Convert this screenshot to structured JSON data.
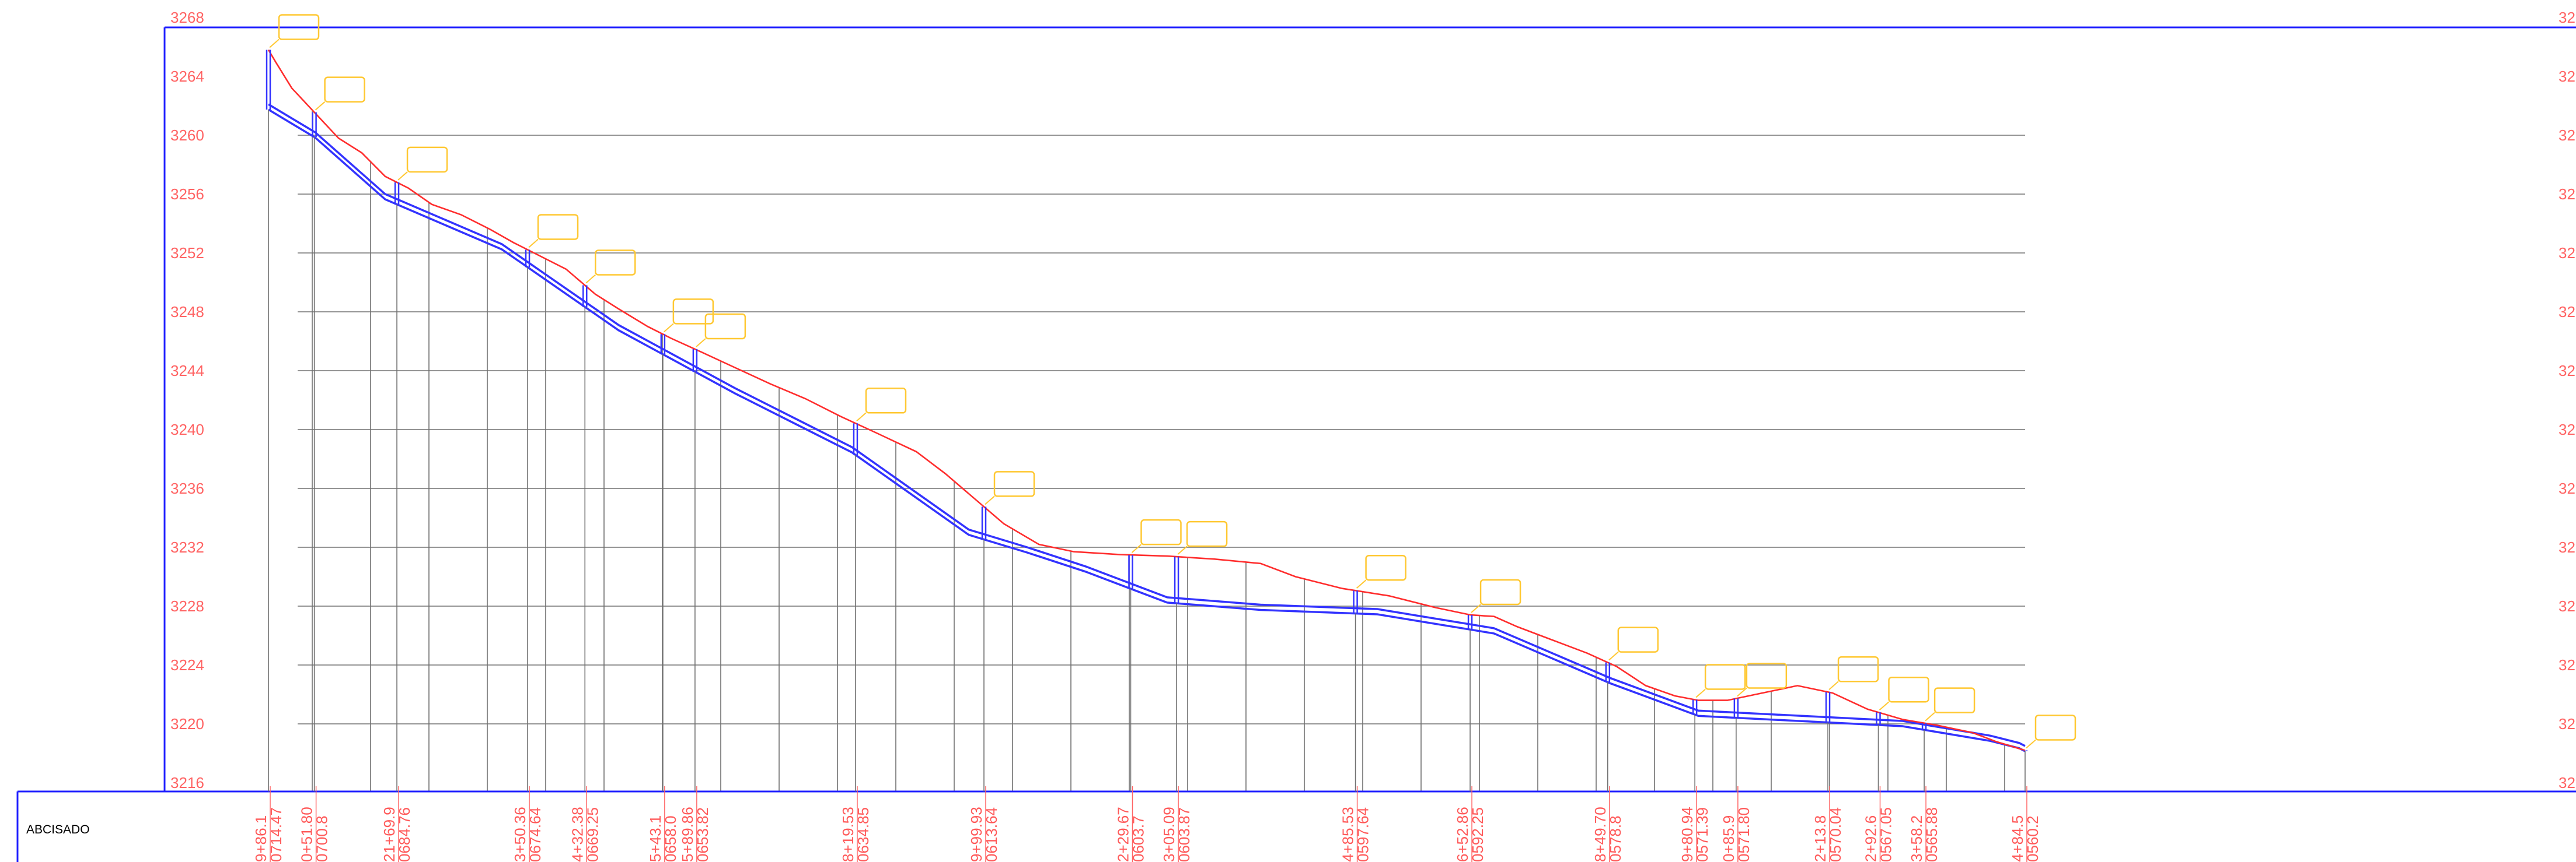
{
  "profile": {
    "elevation_labels": [
      "3268",
      "3264",
      "3260",
      "3256",
      "3252",
      "3248",
      "3244",
      "3240",
      "3236",
      "3232",
      "3228",
      "3224",
      "3220",
      "3216"
    ],
    "right_elevation_labels": [
      "32",
      "32",
      "32",
      "32",
      "32",
      "32",
      "32",
      "32",
      "32",
      "32",
      "32",
      "32",
      "32",
      "32"
    ],
    "row_label": "ABCISADO"
  },
  "chart_data": {
    "type": "line",
    "title": "",
    "xlabel": "",
    "ylabel": "",
    "ylim": [
      3216,
      3268
    ],
    "series": [
      {
        "values": [
          [
            0,
            3265.8
          ],
          [
            12,
            3265
          ],
          [
            40,
            3263.2
          ],
          [
            80,
            3261.5
          ],
          [
            120,
            3259.8
          ],
          [
            160,
            3258.8
          ],
          [
            200,
            3257.2
          ],
          [
            240,
            3256.4
          ],
          [
            280,
            3255.3
          ],
          [
            330,
            3254.6
          ],
          [
            380,
            3253.6
          ],
          [
            420,
            3252.7
          ],
          [
            460,
            3251.9
          ],
          [
            510,
            3250.9
          ],
          [
            560,
            3249.2
          ],
          [
            600,
            3248.2
          ],
          [
            650,
            3247
          ],
          [
            690,
            3246.2
          ],
          [
            740,
            3245.3
          ],
          [
            800,
            3244.2
          ],
          [
            860,
            3243.1
          ],
          [
            920,
            3242.1
          ],
          [
            980,
            3240.9
          ],
          [
            1040,
            3239.8
          ],
          [
            1110,
            3238.5
          ],
          [
            1160,
            3237
          ],
          [
            1210,
            3235.3
          ],
          [
            1260,
            3233.6
          ],
          [
            1320,
            3232.2
          ],
          [
            1380,
            3231.7
          ],
          [
            1460,
            3231.5
          ],
          [
            1540,
            3231.4
          ],
          [
            1620,
            3231.2
          ],
          [
            1700,
            3230.9
          ],
          [
            1760,
            3230
          ],
          [
            1840,
            3229.2
          ],
          [
            1920,
            3228.7
          ],
          [
            2000,
            3227.9
          ],
          [
            2060,
            3227.4
          ],
          [
            2100,
            3227.3
          ],
          [
            2140,
            3226.6
          ],
          [
            2200,
            3225.7
          ],
          [
            2260,
            3224.8
          ],
          [
            2310,
            3223.9
          ],
          [
            2360,
            3222.6
          ],
          [
            2410,
            3221.9
          ],
          [
            2450,
            3221.6
          ],
          [
            2500,
            3221.6
          ],
          [
            2560,
            3222.1
          ],
          [
            2620,
            3222.6
          ],
          [
            2680,
            3222.1
          ],
          [
            2740,
            3221
          ],
          [
            2800,
            3220.3
          ],
          [
            2860,
            3219.9
          ],
          [
            2920,
            3219.4
          ],
          [
            2960,
            3218.8
          ],
          [
            3010,
            3218.2
          ]
        ]
      },
      {
        "values": [
          [
            0,
            3262.1
          ],
          [
            80,
            3260.2
          ],
          [
            200,
            3256
          ],
          [
            400,
            3252.6
          ],
          [
            600,
            3247.1
          ],
          [
            800,
            3242.8
          ],
          [
            1000,
            3238.8
          ],
          [
            1200,
            3233.2
          ],
          [
            1300,
            3232
          ],
          [
            1400,
            3230.7
          ],
          [
            1540,
            3228.6
          ],
          [
            1700,
            3228.1
          ],
          [
            1900,
            3227.8
          ],
          [
            2100,
            3226.5
          ],
          [
            2300,
            3223.1
          ],
          [
            2450,
            3220.9
          ],
          [
            2600,
            3220.6
          ],
          [
            2800,
            3220.2
          ],
          [
            2950,
            3219.2
          ],
          [
            3000,
            3218.7
          ],
          [
            3010,
            3218.5
          ]
        ]
      }
    ],
    "stations": [
      [
        "9+86.1",
        "0714.47"
      ],
      [
        "0+51.80",
        "0700.8"
      ],
      [
        "21+69.9",
        "0684.76"
      ],
      [
        "3+50.36",
        "0674.64"
      ],
      [
        "4+32.38",
        "0669.25"
      ],
      [
        "5+43.1",
        "0658.0"
      ],
      [
        "5+89.86",
        "0653.82"
      ],
      [
        "8+19.53",
        "0634.85"
      ],
      [
        "9+99.93",
        "0613.64"
      ],
      [
        "2+29.67",
        "0603.7"
      ],
      [
        "3+05.09",
        "0603.87"
      ],
      [
        "4+85.53",
        "0597.64"
      ],
      [
        "6+52.86",
        "0592.25"
      ],
      [
        "8+49.70",
        "0578.8"
      ],
      [
        "9+80.94",
        "0571.39"
      ],
      [
        "0+85.9",
        "0571.80"
      ],
      [
        "2+13.8",
        "0570.04"
      ],
      [
        "2+92.6",
        "0567.05"
      ],
      [
        "3+58.2",
        "0565.88"
      ],
      [
        "4+84.5",
        "0560.2"
      ]
    ],
    "colors": {
      "border": "#1f1fff",
      "terrain_line": "#ff2d2d",
      "pipe_line": "#3333ff",
      "grid": "#707070",
      "label_text": "#ff6464",
      "marker_box": "#ffc832"
    }
  }
}
